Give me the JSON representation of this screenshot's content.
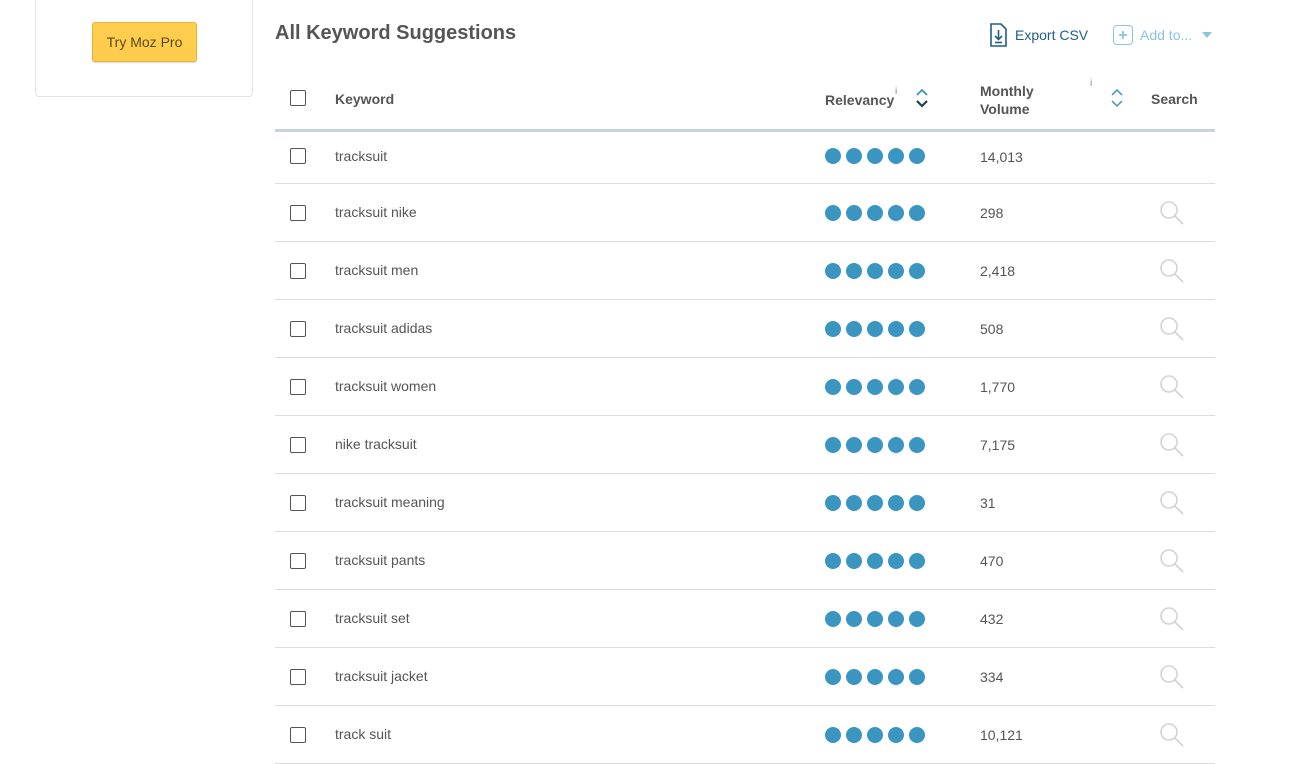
{
  "left_card": {
    "cta_label": "Try Moz Pro"
  },
  "header": {
    "title": "All Keyword Suggestions",
    "export_label": "Export CSV",
    "addto_label": "Add to..."
  },
  "table": {
    "columns": {
      "keyword": "Keyword",
      "relevancy": "Relevancy",
      "relevancy_info": "i",
      "volume_line1": "Monthly",
      "volume_line2": "Volume",
      "volume_info": "i",
      "search": "Search"
    },
    "relevancy_color": "#3a96c1",
    "rows": [
      {
        "keyword": "tracksuit",
        "relevancy": 5,
        "volume": "14,013"
      },
      {
        "keyword": "tracksuit nike",
        "relevancy": 5,
        "volume": "298"
      },
      {
        "keyword": "tracksuit men",
        "relevancy": 5,
        "volume": "2,418"
      },
      {
        "keyword": "tracksuit adidas",
        "relevancy": 5,
        "volume": "508"
      },
      {
        "keyword": "tracksuit women",
        "relevancy": 5,
        "volume": "1,770"
      },
      {
        "keyword": "nike tracksuit",
        "relevancy": 5,
        "volume": "7,175"
      },
      {
        "keyword": "tracksuit meaning",
        "relevancy": 5,
        "volume": "31"
      },
      {
        "keyword": "tracksuit pants",
        "relevancy": 5,
        "volume": "470"
      },
      {
        "keyword": "tracksuit set",
        "relevancy": 5,
        "volume": "432"
      },
      {
        "keyword": "tracksuit jacket",
        "relevancy": 5,
        "volume": "334"
      },
      {
        "keyword": "track suit",
        "relevancy": 5,
        "volume": "10,121"
      }
    ]
  }
}
